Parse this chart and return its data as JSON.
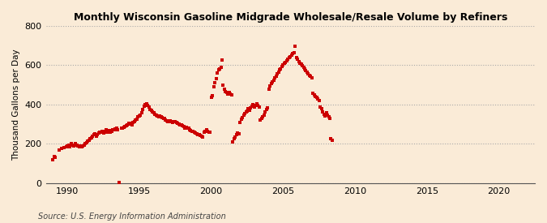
{
  "title": "Monthly Wisconsin Gasoline Midgrade Wholesale/Resale Volume by Refiners",
  "ylabel": "Thousand Gallons per Day",
  "source": "Source: U.S. Energy Information Administration",
  "background_color": "#faebd7",
  "marker_color": "#cc0000",
  "xlim": [
    1988.5,
    2022.5
  ],
  "ylim": [
    0,
    800
  ],
  "yticks": [
    0,
    200,
    400,
    600,
    800
  ],
  "xticks": [
    1990,
    1995,
    2000,
    2005,
    2010,
    2015,
    2020
  ],
  "data": [
    [
      1989.0,
      120
    ],
    [
      1989.08,
      135
    ],
    [
      1989.17,
      130
    ],
    [
      1989.42,
      170
    ],
    [
      1989.58,
      175
    ],
    [
      1989.75,
      180
    ],
    [
      1989.92,
      185
    ],
    [
      1990.0,
      190
    ],
    [
      1990.08,
      195
    ],
    [
      1990.17,
      185
    ],
    [
      1990.25,
      200
    ],
    [
      1990.33,
      195
    ],
    [
      1990.42,
      190
    ],
    [
      1990.5,
      195
    ],
    [
      1990.58,
      200
    ],
    [
      1990.67,
      195
    ],
    [
      1990.75,
      190
    ],
    [
      1990.83,
      185
    ],
    [
      1990.92,
      190
    ],
    [
      1991.0,
      185
    ],
    [
      1991.08,
      190
    ],
    [
      1991.17,
      195
    ],
    [
      1991.25,
      200
    ],
    [
      1991.33,
      205
    ],
    [
      1991.42,
      215
    ],
    [
      1991.5,
      220
    ],
    [
      1991.58,
      225
    ],
    [
      1991.67,
      230
    ],
    [
      1991.75,
      240
    ],
    [
      1991.83,
      245
    ],
    [
      1991.92,
      250
    ],
    [
      1992.0,
      240
    ],
    [
      1992.08,
      245
    ],
    [
      1992.17,
      255
    ],
    [
      1992.25,
      260
    ],
    [
      1992.33,
      260
    ],
    [
      1992.42,
      265
    ],
    [
      1992.5,
      255
    ],
    [
      1992.58,
      265
    ],
    [
      1992.67,
      270
    ],
    [
      1992.75,
      260
    ],
    [
      1992.83,
      265
    ],
    [
      1992.92,
      268
    ],
    [
      1993.0,
      260
    ],
    [
      1993.08,
      265
    ],
    [
      1993.17,
      270
    ],
    [
      1993.25,
      270
    ],
    [
      1993.33,
      275
    ],
    [
      1993.42,
      278
    ],
    [
      1993.5,
      272
    ],
    [
      1993.58,
      5
    ],
    [
      1993.75,
      278
    ],
    [
      1993.83,
      282
    ],
    [
      1993.92,
      285
    ],
    [
      1994.0,
      288
    ],
    [
      1994.08,
      292
    ],
    [
      1994.17,
      298
    ],
    [
      1994.25,
      305
    ],
    [
      1994.33,
      300
    ],
    [
      1994.42,
      305
    ],
    [
      1994.5,
      298
    ],
    [
      1994.58,
      310
    ],
    [
      1994.67,
      315
    ],
    [
      1994.75,
      320
    ],
    [
      1994.83,
      325
    ],
    [
      1994.92,
      338
    ],
    [
      1995.0,
      342
    ],
    [
      1995.08,
      348
    ],
    [
      1995.17,
      358
    ],
    [
      1995.25,
      375
    ],
    [
      1995.33,
      390
    ],
    [
      1995.42,
      398
    ],
    [
      1995.5,
      402
    ],
    [
      1995.58,
      395
    ],
    [
      1995.67,
      388
    ],
    [
      1995.75,
      375
    ],
    [
      1995.83,
      370
    ],
    [
      1995.92,
      362
    ],
    [
      1996.0,
      358
    ],
    [
      1996.08,
      352
    ],
    [
      1996.17,
      348
    ],
    [
      1996.25,
      342
    ],
    [
      1996.33,
      338
    ],
    [
      1996.42,
      342
    ],
    [
      1996.5,
      338
    ],
    [
      1996.58,
      335
    ],
    [
      1996.67,
      330
    ],
    [
      1996.75,
      328
    ],
    [
      1996.83,
      322
    ],
    [
      1996.92,
      318
    ],
    [
      1997.0,
      315
    ],
    [
      1997.08,
      312
    ],
    [
      1997.17,
      318
    ],
    [
      1997.25,
      315
    ],
    [
      1997.33,
      310
    ],
    [
      1997.42,
      315
    ],
    [
      1997.5,
      312
    ],
    [
      1997.58,
      308
    ],
    [
      1997.67,
      305
    ],
    [
      1997.75,
      302
    ],
    [
      1997.83,
      298
    ],
    [
      1997.92,
      295
    ],
    [
      1998.0,
      292
    ],
    [
      1998.08,
      288
    ],
    [
      1998.17,
      282
    ],
    [
      1998.25,
      285
    ],
    [
      1998.33,
      280
    ],
    [
      1998.42,
      278
    ],
    [
      1998.5,
      272
    ],
    [
      1998.58,
      268
    ],
    [
      1998.67,
      265
    ],
    [
      1998.75,
      262
    ],
    [
      1998.83,
      258
    ],
    [
      1998.92,
      255
    ],
    [
      1999.0,
      252
    ],
    [
      1999.08,
      248
    ],
    [
      1999.17,
      245
    ],
    [
      1999.25,
      242
    ],
    [
      1999.33,
      238
    ],
    [
      1999.42,
      235
    ],
    [
      1999.5,
      258
    ],
    [
      1999.58,
      265
    ],
    [
      1999.67,
      270
    ],
    [
      1999.75,
      262
    ],
    [
      1999.83,
      258
    ],
    [
      1999.92,
      260
    ],
    [
      2000.0,
      435
    ],
    [
      2000.08,
      445
    ],
    [
      2000.17,
      490
    ],
    [
      2000.25,
      510
    ],
    [
      2000.33,
      530
    ],
    [
      2000.42,
      560
    ],
    [
      2000.5,
      575
    ],
    [
      2000.58,
      580
    ],
    [
      2000.67,
      590
    ],
    [
      2000.75,
      625
    ],
    [
      2000.83,
      500
    ],
    [
      2000.92,
      480
    ],
    [
      2001.0,
      465
    ],
    [
      2001.08,
      460
    ],
    [
      2001.17,
      455
    ],
    [
      2001.25,
      460
    ],
    [
      2001.33,
      455
    ],
    [
      2001.42,
      450
    ],
    [
      2001.5,
      210
    ],
    [
      2001.58,
      225
    ],
    [
      2001.67,
      235
    ],
    [
      2001.75,
      245
    ],
    [
      2001.83,
      255
    ],
    [
      2001.92,
      250
    ],
    [
      2002.0,
      310
    ],
    [
      2002.08,
      325
    ],
    [
      2002.17,
      335
    ],
    [
      2002.25,
      345
    ],
    [
      2002.33,
      355
    ],
    [
      2002.42,
      362
    ],
    [
      2002.5,
      368
    ],
    [
      2002.58,
      378
    ],
    [
      2002.67,
      372
    ],
    [
      2002.75,
      385
    ],
    [
      2002.83,
      392
    ],
    [
      2002.92,
      398
    ],
    [
      2003.0,
      388
    ],
    [
      2003.08,
      395
    ],
    [
      2003.17,
      402
    ],
    [
      2003.25,
      395
    ],
    [
      2003.33,
      388
    ],
    [
      2003.42,
      320
    ],
    [
      2003.5,
      328
    ],
    [
      2003.58,
      338
    ],
    [
      2003.67,
      348
    ],
    [
      2003.75,
      362
    ],
    [
      2003.83,
      375
    ],
    [
      2003.92,
      385
    ],
    [
      2004.0,
      480
    ],
    [
      2004.08,
      495
    ],
    [
      2004.17,
      505
    ],
    [
      2004.25,
      515
    ],
    [
      2004.33,
      525
    ],
    [
      2004.42,
      535
    ],
    [
      2004.5,
      545
    ],
    [
      2004.58,
      555
    ],
    [
      2004.67,
      565
    ],
    [
      2004.75,
      575
    ],
    [
      2004.83,
      582
    ],
    [
      2004.92,
      592
    ],
    [
      2005.0,
      600
    ],
    [
      2005.08,
      608
    ],
    [
      2005.17,
      615
    ],
    [
      2005.25,
      622
    ],
    [
      2005.33,
      630
    ],
    [
      2005.42,
      638
    ],
    [
      2005.5,
      645
    ],
    [
      2005.58,
      652
    ],
    [
      2005.67,
      658
    ],
    [
      2005.75,
      665
    ],
    [
      2005.83,
      695
    ],
    [
      2005.92,
      640
    ],
    [
      2006.0,
      630
    ],
    [
      2006.08,
      620
    ],
    [
      2006.17,
      612
    ],
    [
      2006.25,
      605
    ],
    [
      2006.33,
      598
    ],
    [
      2006.42,
      590
    ],
    [
      2006.5,
      582
    ],
    [
      2006.58,
      572
    ],
    [
      2006.67,
      565
    ],
    [
      2006.75,
      558
    ],
    [
      2006.83,
      548
    ],
    [
      2006.92,
      542
    ],
    [
      2007.0,
      535
    ],
    [
      2007.08,
      458
    ],
    [
      2007.17,
      448
    ],
    [
      2007.25,
      442
    ],
    [
      2007.33,
      435
    ],
    [
      2007.42,
      428
    ],
    [
      2007.5,
      422
    ],
    [
      2007.58,
      388
    ],
    [
      2007.67,
      378
    ],
    [
      2007.75,
      362
    ],
    [
      2007.83,
      350
    ],
    [
      2007.92,
      342
    ],
    [
      2008.0,
      358
    ],
    [
      2008.08,
      348
    ],
    [
      2008.17,
      338
    ],
    [
      2008.25,
      328
    ],
    [
      2008.33,
      225
    ],
    [
      2008.42,
      218
    ]
  ]
}
